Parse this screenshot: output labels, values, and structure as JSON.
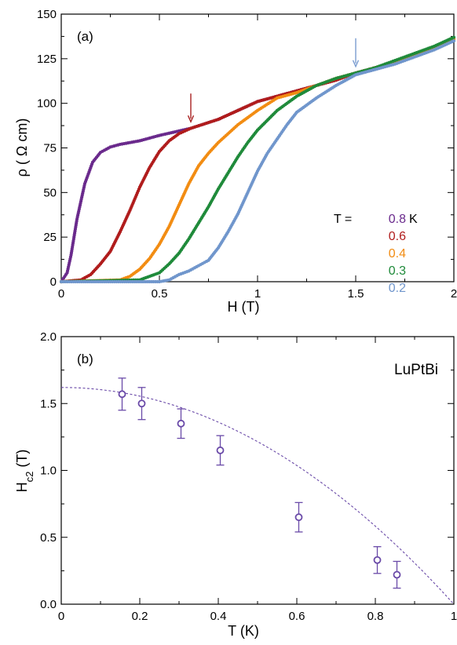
{
  "colors": {
    "T08": "#6a2a8c",
    "T06": "#b01c1c",
    "T04": "#f28c12",
    "T03": "#1f8a3a",
    "T02": "#7096cc",
    "panel_b": "#6a4aa8",
    "red_arrow": "#a82020",
    "blue_arrow": "#7a9cd0"
  },
  "chart_data": [
    {
      "panel": "(a)",
      "type": "scatter",
      "xlabel": "H (T)",
      "ylabel": "ρ (  Ω cm)",
      "xlim": [
        0,
        2
      ],
      "ylim": [
        0,
        150
      ],
      "xticks": [
        0,
        0.5,
        1,
        1.5,
        2
      ],
      "xtick_labels": [
        "0",
        "0.5",
        "1",
        "1.5",
        "2"
      ],
      "yticks": [
        0,
        25,
        50,
        75,
        100,
        125,
        150
      ],
      "ytick_labels": [
        "0",
        "25",
        "50",
        "75",
        "100",
        "125",
        "150"
      ],
      "legend_prefix": "T =",
      "legend_unit": "K",
      "legend_position": "right",
      "arrows": [
        {
          "x": 0.66,
          "y": 87,
          "color_key": "red_arrow"
        },
        {
          "x": 1.5,
          "y": 118,
          "color_key": "blue_arrow"
        }
      ],
      "series": [
        {
          "name": "0.8",
          "color_key": "T08",
          "points": [
            [
              0,
              0
            ],
            [
              0.03,
              5
            ],
            [
              0.05,
              15
            ],
            [
              0.08,
              35
            ],
            [
              0.12,
              55
            ],
            [
              0.16,
              67
            ],
            [
              0.2,
              72.5
            ],
            [
              0.25,
              75.5
            ],
            [
              0.3,
              77
            ],
            [
              0.4,
              79
            ],
            [
              0.5,
              82
            ],
            [
              0.6,
              84.5
            ],
            [
              0.66,
              86
            ],
            [
              0.8,
              91
            ],
            [
              0.9,
              96
            ],
            [
              1.0,
              101
            ],
            [
              1.1,
              104
            ],
            [
              1.2,
              107
            ],
            [
              1.3,
              110
            ],
            [
              1.4,
              113
            ],
            [
              1.5,
              117
            ],
            [
              1.6,
              120
            ],
            [
              1.7,
              123
            ],
            [
              1.8,
              127
            ],
            [
              1.9,
              131
            ],
            [
              2.0,
              136
            ]
          ]
        },
        {
          "name": "0.6",
          "color_key": "T06",
          "points": [
            [
              0,
              0
            ],
            [
              0.1,
              1
            ],
            [
              0.15,
              4
            ],
            [
              0.2,
              10
            ],
            [
              0.25,
              17
            ],
            [
              0.3,
              28
            ],
            [
              0.35,
              40
            ],
            [
              0.4,
              53
            ],
            [
              0.45,
              64
            ],
            [
              0.5,
              73
            ],
            [
              0.55,
              79
            ],
            [
              0.6,
              83
            ],
            [
              0.66,
              86
            ],
            [
              0.8,
              91
            ],
            [
              0.9,
              96
            ],
            [
              1.0,
              101
            ],
            [
              1.1,
              104
            ],
            [
              1.2,
              107
            ],
            [
              1.3,
              110
            ],
            [
              1.4,
              113
            ],
            [
              1.5,
              117
            ],
            [
              1.6,
              120
            ],
            [
              1.7,
              123
            ],
            [
              1.8,
              127
            ],
            [
              1.9,
              131
            ],
            [
              2.0,
              136
            ]
          ]
        },
        {
          "name": "0.4",
          "color_key": "T04",
          "points": [
            [
              0,
              0
            ],
            [
              0.3,
              1
            ],
            [
              0.35,
              3
            ],
            [
              0.4,
              7
            ],
            [
              0.45,
              13
            ],
            [
              0.5,
              21
            ],
            [
              0.55,
              31
            ],
            [
              0.6,
              43
            ],
            [
              0.65,
              55
            ],
            [
              0.7,
              65
            ],
            [
              0.75,
              72
            ],
            [
              0.8,
              78
            ],
            [
              0.9,
              88
            ],
            [
              1.0,
              96
            ],
            [
              1.1,
              103
            ],
            [
              1.2,
              106
            ],
            [
              1.3,
              110
            ],
            [
              1.4,
              114
            ],
            [
              1.5,
              117
            ],
            [
              1.6,
              120
            ],
            [
              1.7,
              123
            ],
            [
              1.8,
              127
            ],
            [
              1.9,
              131
            ],
            [
              2.0,
              136
            ]
          ]
        },
        {
          "name": "0.3",
          "color_key": "T03",
          "points": [
            [
              0,
              0
            ],
            [
              0.4,
              1
            ],
            [
              0.5,
              5
            ],
            [
              0.55,
              10
            ],
            [
              0.6,
              16
            ],
            [
              0.65,
              24
            ],
            [
              0.7,
              33
            ],
            [
              0.75,
              42
            ],
            [
              0.8,
              52
            ],
            [
              0.85,
              61
            ],
            [
              0.9,
              70
            ],
            [
              0.95,
              78
            ],
            [
              1.0,
              85
            ],
            [
              1.1,
              96
            ],
            [
              1.2,
              104
            ],
            [
              1.3,
              110
            ],
            [
              1.4,
              114
            ],
            [
              1.5,
              117
            ],
            [
              1.6,
              120
            ],
            [
              1.7,
              124
            ],
            [
              1.8,
              128
            ],
            [
              1.9,
              132
            ],
            [
              2.0,
              137
            ]
          ]
        },
        {
          "name": "0.2",
          "color_key": "T02",
          "points": [
            [
              0,
              0
            ],
            [
              0.5,
              0
            ],
            [
              0.55,
              1
            ],
            [
              0.6,
              4
            ],
            [
              0.65,
              6
            ],
            [
              0.7,
              9
            ],
            [
              0.75,
              12
            ],
            [
              0.8,
              19
            ],
            [
              0.85,
              28
            ],
            [
              0.9,
              38
            ],
            [
              0.95,
              50
            ],
            [
              1.0,
              62
            ],
            [
              1.05,
              72
            ],
            [
              1.1,
              80
            ],
            [
              1.15,
              88
            ],
            [
              1.2,
              95
            ],
            [
              1.3,
              103
            ],
            [
              1.4,
              110
            ],
            [
              1.5,
              116
            ],
            [
              1.6,
              119
            ],
            [
              1.7,
              122
            ],
            [
              1.8,
              126
            ],
            [
              1.9,
              130
            ],
            [
              2.0,
              135
            ]
          ]
        }
      ]
    },
    {
      "panel": "(b)",
      "type": "scatter",
      "title": "LuPtBi",
      "xlabel": "T (K)",
      "ylabel_main": "H",
      "ylabel_sub": "c2",
      "ylabel_unit": " (T)",
      "xlim": [
        0,
        1
      ],
      "ylim": [
        0,
        2
      ],
      "xticks": [
        0,
        0.2,
        0.4,
        0.6,
        0.8,
        1
      ],
      "xtick_labels": [
        "0",
        "0.2",
        "0.4",
        "0.6",
        "0.8",
        "1"
      ],
      "yticks": [
        0,
        0.5,
        1,
        1.5,
        2
      ],
      "ytick_labels": [
        "0.0",
        "0.5",
        "1.0",
        "1.5",
        "2.0"
      ],
      "points": [
        {
          "x": 0.155,
          "y": 1.57,
          "err": 0.12
        },
        {
          "x": 0.205,
          "y": 1.5,
          "err": 0.12
        },
        {
          "x": 0.305,
          "y": 1.35,
          "err": 0.11
        },
        {
          "x": 0.405,
          "y": 1.15,
          "err": 0.11
        },
        {
          "x": 0.605,
          "y": 0.65,
          "err": 0.11
        },
        {
          "x": 0.805,
          "y": 0.33,
          "err": 0.1
        },
        {
          "x": 0.855,
          "y": 0.22,
          "err": 0.1
        }
      ],
      "fit": {
        "H0": 1.62,
        "Tc": 1.0,
        "style": "dashed"
      }
    }
  ]
}
